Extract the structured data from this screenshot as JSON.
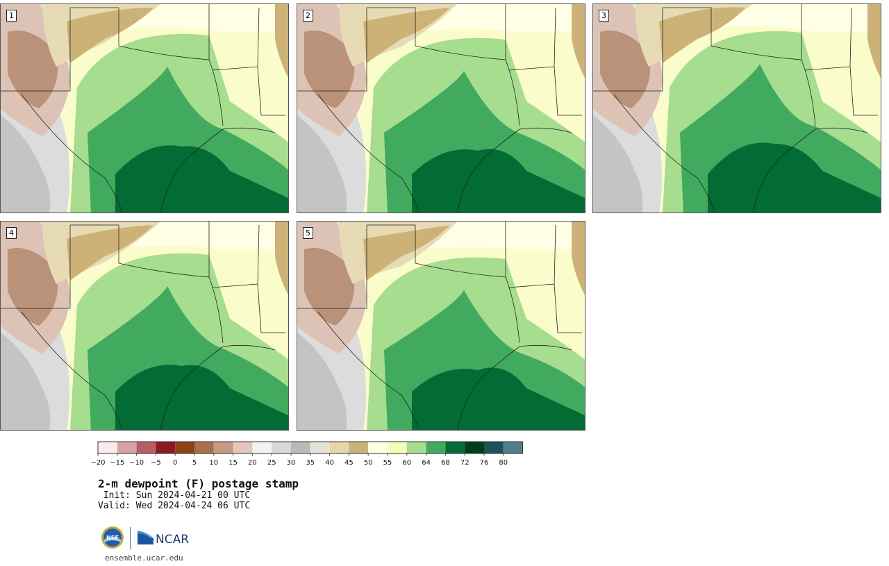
{
  "title": "2-m dewpoint (F) postage stamp",
  "init_line": " Init: Sun 2024-04-21 00 UTC",
  "valid_line": "Valid: Wed 2024-04-24 06 UTC",
  "website": "ensemble.ucar.edu",
  "logos": {
    "nsf": "NSF",
    "ncar": "NCAR"
  },
  "members": [
    "1",
    "2",
    "3",
    "4",
    "5"
  ],
  "colorbar": {
    "ticks": [
      "−20",
      "−15",
      "−10",
      "−5",
      "0",
      "5",
      "10",
      "15",
      "20",
      "25",
      "30",
      "35",
      "40",
      "45",
      "50",
      "55",
      "60",
      "64",
      "68",
      "72",
      "76",
      "80"
    ],
    "colors": [
      "#f7ecec",
      "#d8a3a8",
      "#b55e66",
      "#8c1a22",
      "#8a4413",
      "#a8704c",
      "#c49a80",
      "#e2c8b9",
      "#f2f2f2",
      "#d8d8d8",
      "#b9b9b9",
      "#e4e4d9",
      "#e4d7ac",
      "#cbb27a",
      "#ffffe4",
      "#f6fbb8",
      "#a6dd8e",
      "#41aa5e",
      "#036b34",
      "#003d1f",
      "#1c5358",
      "#4f8087"
    ]
  }
}
